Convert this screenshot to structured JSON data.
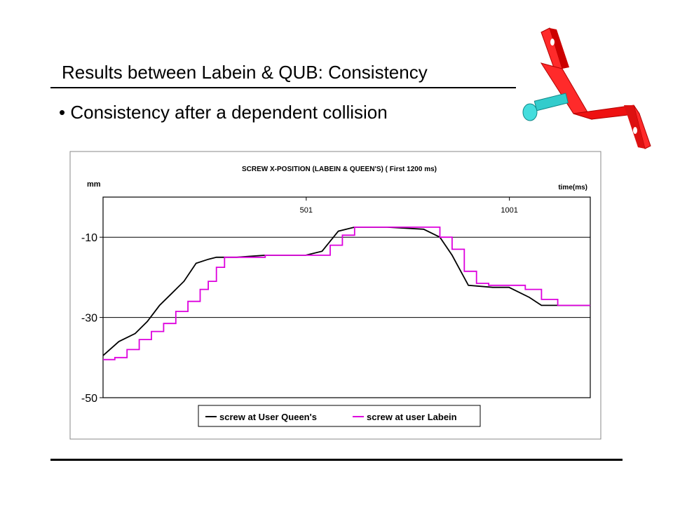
{
  "slide": {
    "title": "Results between Labein & QUB: Consistency",
    "bullet": "Consistency after a dependent collision"
  },
  "bracket_illustration": {
    "name": "red-bracket-with-cyan-screw",
    "bracket_color": "#ee1111",
    "screw_color": "#33cccc"
  },
  "chart_data": {
    "type": "line",
    "title": "SCREW X-POSITION (LABEIN & QUEEN'S)  ( First 1200 ms)",
    "ylabel": "mm",
    "xlabel": "time(ms)",
    "ylim": [
      -50,
      0
    ],
    "xlim": [
      1,
      1200
    ],
    "yticks": [
      -10,
      -30,
      -50
    ],
    "ytick_labels": [
      "-10",
      "-30",
      "-50"
    ],
    "xticks": [
      501,
      1001
    ],
    "xtick_labels": [
      "501",
      "1001"
    ],
    "x_axis_position": "top",
    "grid": "horizontal",
    "legend": "bottom",
    "series": [
      {
        "name": "screw at User Queen's",
        "color": "#000000",
        "x": [
          1,
          40,
          80,
          110,
          140,
          170,
          200,
          230,
          260,
          280,
          300,
          330,
          400,
          500,
          540,
          580,
          620,
          700,
          790,
          830,
          860,
          900,
          960,
          1000,
          1050,
          1080,
          1120,
          1200
        ],
        "y": [
          -39.5,
          -36,
          -34,
          -31,
          -27,
          -24,
          -21,
          -16.5,
          -15.5,
          -15,
          -15,
          -15,
          -14.5,
          -14.5,
          -13.5,
          -8.5,
          -7.5,
          -7.5,
          -8,
          -10,
          -14.5,
          -22,
          -22.5,
          -22.5,
          -25,
          -27,
          -27,
          -27
        ]
      },
      {
        "name": "screw at user Labein",
        "color": "#dd00dd",
        "x": [
          1,
          30,
          60,
          90,
          120,
          150,
          180,
          210,
          240,
          260,
          280,
          300,
          330,
          400,
          500,
          530,
          560,
          590,
          620,
          700,
          800,
          830,
          860,
          890,
          920,
          950,
          980,
          1040,
          1080,
          1120,
          1200
        ],
        "y": [
          -40.5,
          -40,
          -38,
          -35.5,
          -33.5,
          -31.5,
          -28.5,
          -26,
          -23,
          -21,
          -17.5,
          -15,
          -15,
          -14.5,
          -14.5,
          -14.5,
          -12,
          -9.5,
          -7.5,
          -7.5,
          -7.5,
          -10,
          -13,
          -18.5,
          -21.5,
          -22,
          -22,
          -23,
          -25.5,
          -27,
          -27
        ]
      }
    ]
  }
}
